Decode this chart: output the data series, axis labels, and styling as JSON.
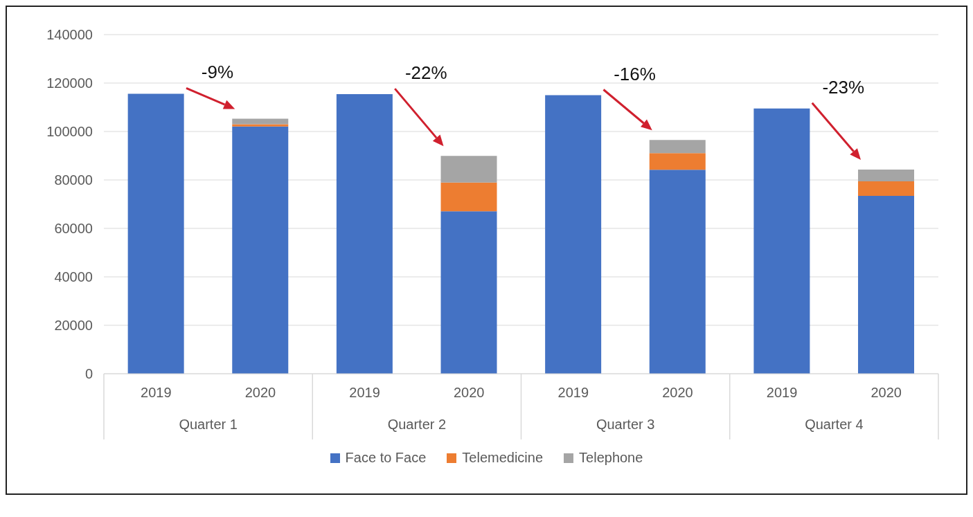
{
  "chart_data": {
    "type": "bar",
    "stacked": true,
    "categories": [
      "2019",
      "2020",
      "2019",
      "2020",
      "2019",
      "2020",
      "2019",
      "2020"
    ],
    "series": [
      {
        "name": "Face to Face",
        "color": "#4472c4",
        "values": [
          115600,
          102100,
          115400,
          67100,
          115000,
          84200,
          109500,
          73400
        ]
      },
      {
        "name": "Telemedicine",
        "color": "#ed7d31",
        "values": [
          0,
          900,
          0,
          11800,
          0,
          6900,
          0,
          6000
        ]
      },
      {
        "name": "Telephone",
        "color": "#a5a5a5",
        "values": [
          0,
          2300,
          0,
          11000,
          0,
          5400,
          0,
          4900
        ]
      }
    ],
    "ylim": [
      0,
      140000
    ],
    "yticks": [
      0,
      20000,
      40000,
      60000,
      80000,
      100000,
      120000,
      140000
    ],
    "grid": "y",
    "legend": "bottom",
    "annotations": [
      "-9%",
      "-22%",
      "-16%",
      "-23%",
      "Quarter 1",
      "Quarter 2",
      "Quarter 3",
      "Quarter 4"
    ]
  }
}
